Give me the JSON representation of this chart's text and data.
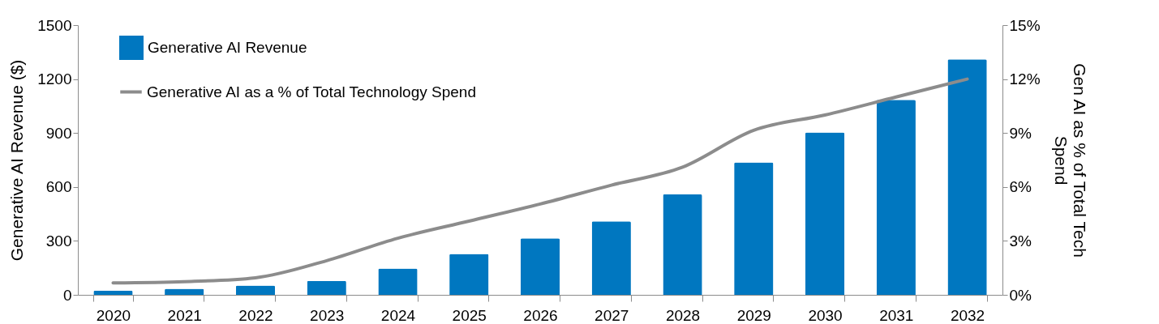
{
  "chart_data": {
    "type": "bar",
    "ylabel": "Generative AI Revenue ($)",
    "y2label": "Gen AI as % of Total Tech Spend",
    "categories": [
      "2020",
      "2021",
      "2022",
      "2023",
      "2024",
      "2025",
      "2026",
      "2027",
      "2028",
      "2029",
      "2030",
      "2031",
      "2032"
    ],
    "series": [
      {
        "name": "Generative AI Revenue",
        "color": "#0077c0",
        "values": [
          24,
          34,
          52,
          78,
          146,
          227,
          314,
          409,
          559,
          736,
          903,
          1085,
          1310
        ]
      },
      {
        "name": "Generative AI as a % of Total Technology Spend",
        "type": "line",
        "axis": "y2",
        "color": "#8c8c8c",
        "values": [
          0.66,
          0.73,
          0.95,
          1.9,
          3.15,
          4.1,
          5.05,
          6.1,
          7.1,
          9.15,
          10.0,
          11.0,
          12.0
        ]
      }
    ],
    "ylim": [
      0,
      1500
    ],
    "yticks": [
      0,
      300,
      600,
      900,
      1200,
      1500
    ],
    "y2lim": [
      0,
      15
    ],
    "y2ticks": [
      {
        "value": 0,
        "label": "0%"
      },
      {
        "value": 3,
        "label": "3%"
      },
      {
        "value": 6,
        "label": "6%"
      },
      {
        "value": 9,
        "label": "9%"
      },
      {
        "value": 12,
        "label": "12%"
      },
      {
        "value": 15,
        "label": "15%"
      }
    ],
    "legend": "top left",
    "grid": false
  }
}
